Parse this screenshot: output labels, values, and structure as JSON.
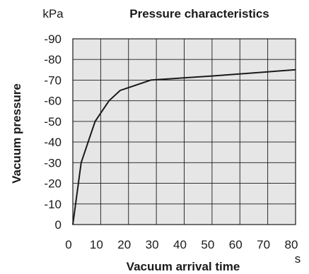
{
  "chart_data": {
    "type": "line",
    "title": "Pressure characteristics",
    "xlabel": "Vacuum arrival time",
    "ylabel": "Vacuum pressure",
    "x_unit": "s",
    "y_unit": "kPa",
    "xlim": [
      0,
      80
    ],
    "ylim": [
      0,
      -90
    ],
    "grid": true,
    "x_ticks": [
      "0",
      "10",
      "20",
      "30",
      "40",
      "50",
      "60",
      "70",
      "80"
    ],
    "y_ticks": [
      "0",
      "-10",
      "-20",
      "-30",
      "-40",
      "-50",
      "-60",
      "-70",
      "-80",
      "-90"
    ],
    "series": [
      {
        "x": [
          0,
          3,
          8,
          13,
          17,
          28,
          50,
          80
        ],
        "y": [
          0,
          -30,
          -50,
          -60,
          -65,
          -70,
          -72,
          -75
        ]
      }
    ],
    "colors": {
      "grid_fill": "#e6e6e6",
      "grid_line": "#1a1a1a",
      "curve": "#1a1a1a"
    }
  }
}
